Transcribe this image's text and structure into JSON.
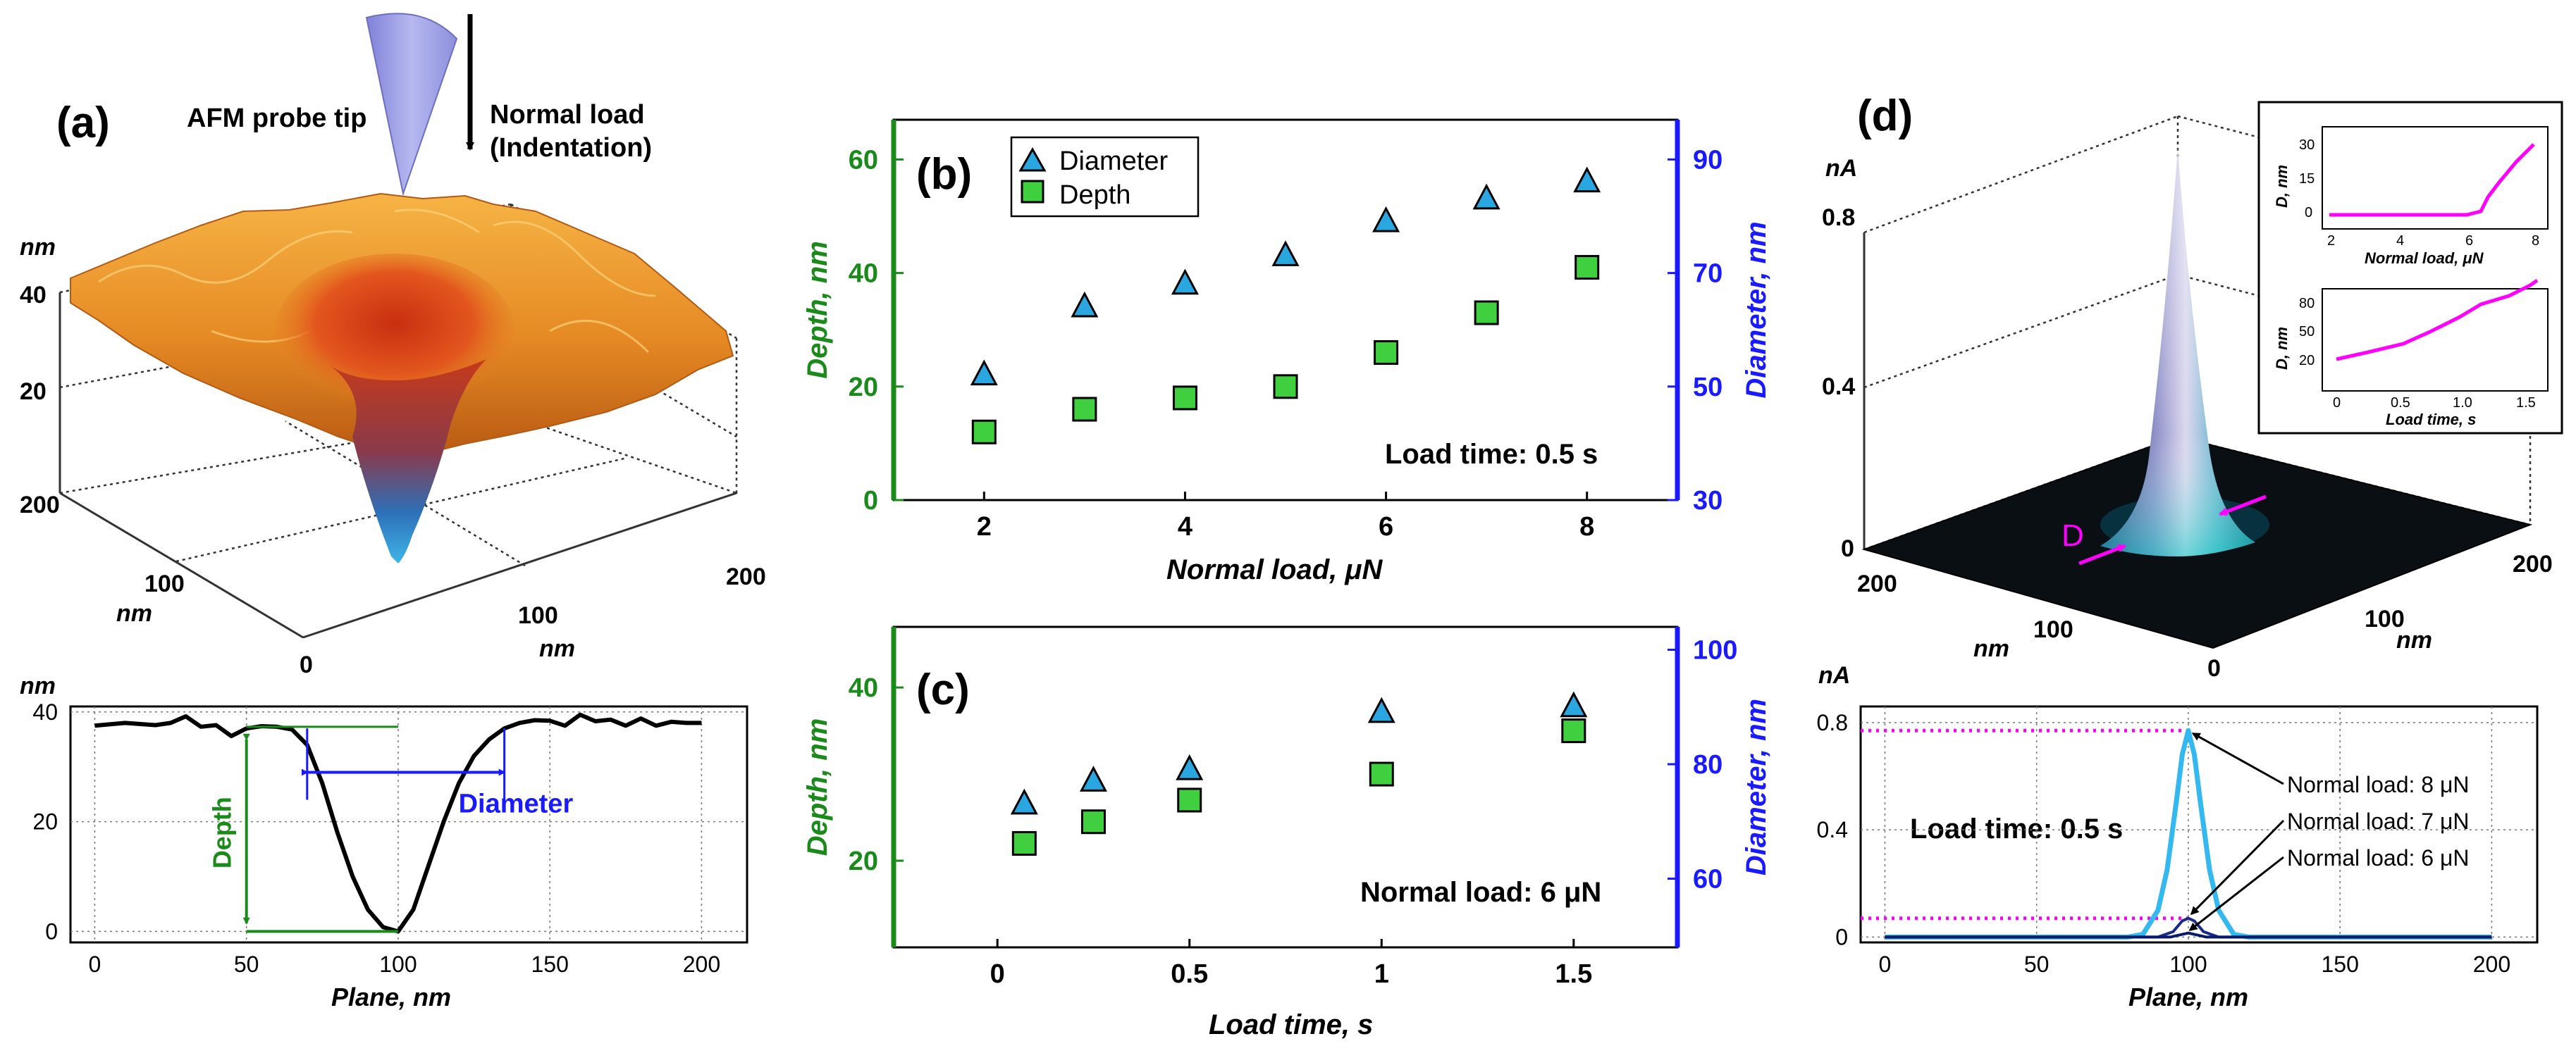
{
  "panels": {
    "a": {
      "label": "(a)",
      "probe_label": "AFM probe tip",
      "load_label_1": "Normal load",
      "load_label_2": "(Indentation)",
      "z_unit": "nm",
      "z_ticks": [
        "40",
        "20"
      ],
      "y_ticks": [
        "200",
        "100",
        "0"
      ],
      "y_unit": "nm",
      "x_ticks": [
        "100",
        "200"
      ],
      "x_unit": "nm"
    },
    "a_bottom": {
      "y_unit": "nm",
      "depth_label": "Depth",
      "diameter_label": "Diameter"
    },
    "b": {
      "label": "(b)",
      "annotation": "Load time: 0.5 s"
    },
    "c": {
      "label": "(c)",
      "annotation": "Normal load: 6 μN"
    },
    "d": {
      "label": "(d)",
      "z_unit": "nA",
      "z_ticks": [
        "0.8",
        "0.4",
        "0"
      ],
      "x_ticks": [
        "200",
        "100",
        "0",
        "100",
        "200"
      ],
      "x_unit_left": "nm",
      "x_unit_right": "nm",
      "d_marker": "D",
      "inset1": {
        "ylabel": "D, nm",
        "xlabel": "Normal load, μN",
        "yticks": [
          "30",
          "15",
          "0"
        ],
        "xticks": [
          "2",
          "4",
          "6",
          "8"
        ]
      },
      "inset2": {
        "ylabel": "D, nm",
        "xlabel": "Load time, s",
        "yticks": [
          "80",
          "50",
          "20"
        ],
        "xticks": [
          "0",
          "0.5",
          "1.0",
          "1.5"
        ]
      }
    },
    "d_bottom": {
      "annotation": "Load time: 0.5 s",
      "label_8": "Normal load: 8 μN",
      "label_7": "Normal load: 7 μN",
      "label_6": "Normal load: 6 μN"
    }
  },
  "colors": {
    "green": "#1a8a1a",
    "blue": "#1a1aff",
    "triangle": "#2aa6e0",
    "square": "#3fcf3f",
    "magenta": "#ff00ff",
    "cyan": "#33b8f0"
  },
  "chart_data": [
    {
      "id": "b",
      "type": "scatter",
      "title": "",
      "xlabel": "Normal load, μN",
      "ylabel_left": "Depth, nm",
      "ylabel_right": "Diameter, nm",
      "xlim": [
        1.1,
        8.9
      ],
      "ylim_left": [
        0,
        67
      ],
      "ylim_right": [
        30,
        97
      ],
      "x_ticks": [
        2,
        4,
        6,
        8
      ],
      "y_ticks_left": [
        0,
        20,
        40,
        60
      ],
      "y_ticks_right": [
        30,
        50,
        70,
        90
      ],
      "legend": [
        "Diameter",
        "Depth"
      ],
      "legend_position": "top-left",
      "series": [
        {
          "name": "Diameter",
          "axis": "right",
          "x": [
            2,
            3,
            4,
            5,
            6,
            7,
            8
          ],
          "values": [
            52,
            64,
            68,
            73,
            79,
            83,
            86
          ]
        },
        {
          "name": "Depth",
          "axis": "left",
          "x": [
            2,
            3,
            4,
            5,
            6,
            7,
            8
          ],
          "values": [
            12,
            16,
            18,
            20,
            26,
            33,
            41
          ]
        }
      ]
    },
    {
      "id": "c",
      "type": "scatter",
      "title": "",
      "xlabel": "Load time, s",
      "ylabel_left": "Depth, nm",
      "ylabel_right": "Diameter, nm",
      "xlim": [
        -0.27,
        1.77
      ],
      "ylim_left": [
        10,
        47
      ],
      "ylim_right": [
        48,
        104
      ],
      "x_ticks": [
        0,
        0.5,
        1,
        1.5
      ],
      "x_tick_labels": [
        "0",
        "0.5",
        "1",
        "1.5"
      ],
      "y_ticks_left": [
        20,
        40
      ],
      "y_ticks_right": [
        60,
        80,
        100
      ],
      "series": [
        {
          "name": "Diameter",
          "axis": "right",
          "x": [
            0.07,
            0.25,
            0.5,
            1,
            1.5
          ],
          "values": [
            73,
            77,
            79,
            89,
            90
          ]
        },
        {
          "name": "Depth",
          "axis": "left",
          "x": [
            0.07,
            0.25,
            0.5,
            1,
            1.5
          ],
          "values": [
            22,
            24.5,
            27,
            30,
            35
          ]
        }
      ]
    },
    {
      "id": "a_bottom",
      "type": "line",
      "xlabel": "Plane, nm",
      "ylabel": "nm",
      "xlim": [
        -8,
        215
      ],
      "ylim": [
        -2,
        41
      ],
      "x_ticks": [
        0,
        50,
        100,
        150,
        200
      ],
      "y_ticks": [
        0,
        20,
        40
      ],
      "series": [
        {
          "name": "profile",
          "x": [
            0,
            10,
            20,
            25,
            30,
            35,
            40,
            45,
            50,
            55,
            60,
            65,
            70,
            75,
            80,
            85,
            90,
            95,
            100,
            105,
            110,
            115,
            120,
            125,
            130,
            135,
            140,
            145,
            150,
            155,
            160,
            165,
            170,
            175,
            180,
            185,
            190,
            195,
            200
          ],
          "values": [
            37.5,
            38,
            37.6,
            38,
            39.2,
            37.3,
            37.6,
            35.6,
            37,
            37.4,
            37.3,
            36.8,
            34,
            27,
            18,
            10,
            4,
            0.8,
            0,
            4,
            12,
            20,
            27,
            32,
            35,
            37,
            38,
            38.5,
            38.4,
            37.5,
            39.5,
            38.3,
            38.6,
            37.5,
            38.8,
            37.5,
            38.2,
            38,
            38
          ]
        }
      ],
      "annotations": {
        "depth_x": 50,
        "diameter_x": [
          70,
          135
        ],
        "diameter_y": 29
      }
    },
    {
      "id": "d_bottom",
      "type": "line",
      "xlabel": "Plane, nm",
      "ylabel": "nA",
      "xlim": [
        -8,
        215
      ],
      "ylim": [
        -0.02,
        0.86
      ],
      "x_ticks": [
        0,
        50,
        100,
        150,
        200
      ],
      "y_ticks": [
        0,
        0.4,
        0.8
      ],
      "reference_lines": [
        0.77,
        0.07
      ],
      "series": [
        {
          "name": "Normal load: 8 μN",
          "x": [
            0,
            80,
            85,
            90,
            93,
            96,
            98,
            100,
            102,
            104,
            107,
            110,
            115,
            120,
            200
          ],
          "values": [
            0,
            0,
            0.01,
            0.1,
            0.25,
            0.5,
            0.68,
            0.77,
            0.68,
            0.5,
            0.25,
            0.1,
            0.01,
            0,
            0
          ]
        },
        {
          "name": "Normal load: 7 μN",
          "x": [
            0,
            90,
            95,
            98,
            100,
            102,
            105,
            110,
            200
          ],
          "values": [
            0,
            0,
            0.02,
            0.06,
            0.07,
            0.06,
            0.02,
            0,
            0
          ]
        },
        {
          "name": "Normal load: 6 μN",
          "x": [
            0,
            94,
            98,
            100,
            102,
            106,
            200
          ],
          "values": [
            0,
            0,
            0.01,
            0.015,
            0.01,
            0,
            0
          ]
        }
      ]
    }
  ]
}
